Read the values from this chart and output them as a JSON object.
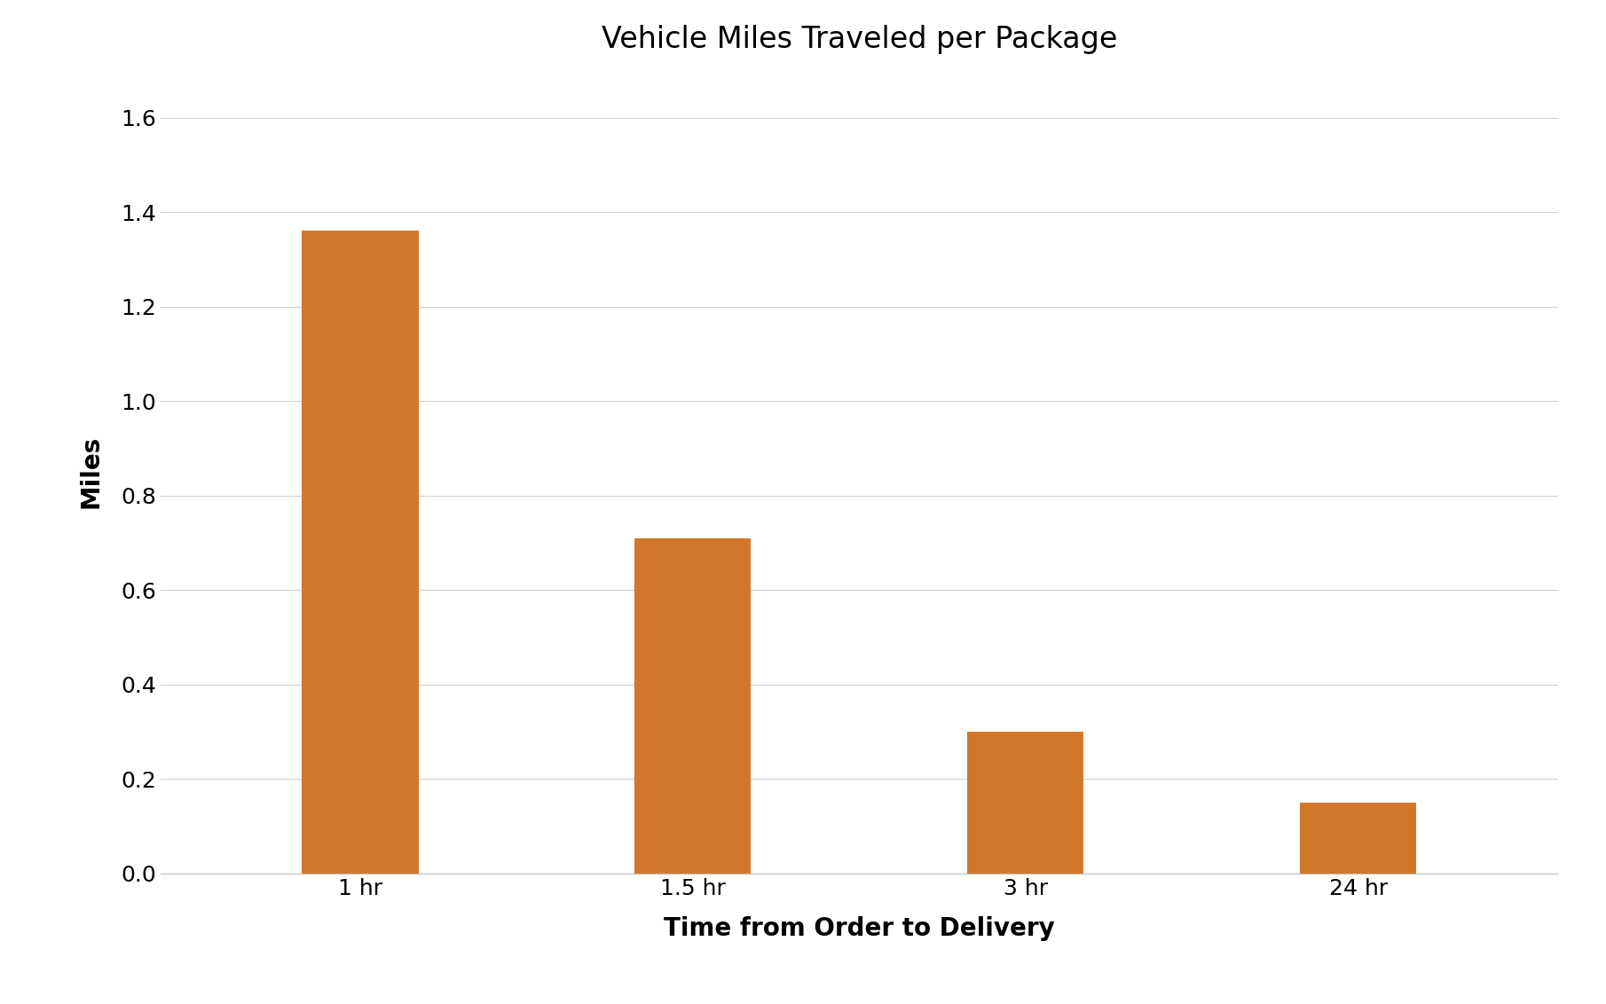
{
  "title": "Vehicle Miles Traveled per Package",
  "xlabel": "Time from Order to Delivery",
  "ylabel": "Miles",
  "categories": [
    "1 hr",
    "1.5 hr",
    "3 hr",
    "24 hr"
  ],
  "values": [
    1.36,
    0.71,
    0.3,
    0.15
  ],
  "bar_color": "#D2772A",
  "ylim": [
    0,
    1.7
  ],
  "yticks": [
    0.0,
    0.2,
    0.4,
    0.6,
    0.8,
    1.0,
    1.2,
    1.4,
    1.6
  ],
  "background_color": "#ffffff",
  "title_fontsize": 24,
  "axis_label_fontsize": 20,
  "tick_fontsize": 18,
  "bar_width": 0.35,
  "grid_color": "#d0d0d0",
  "spine_color": "#c0c0c0"
}
